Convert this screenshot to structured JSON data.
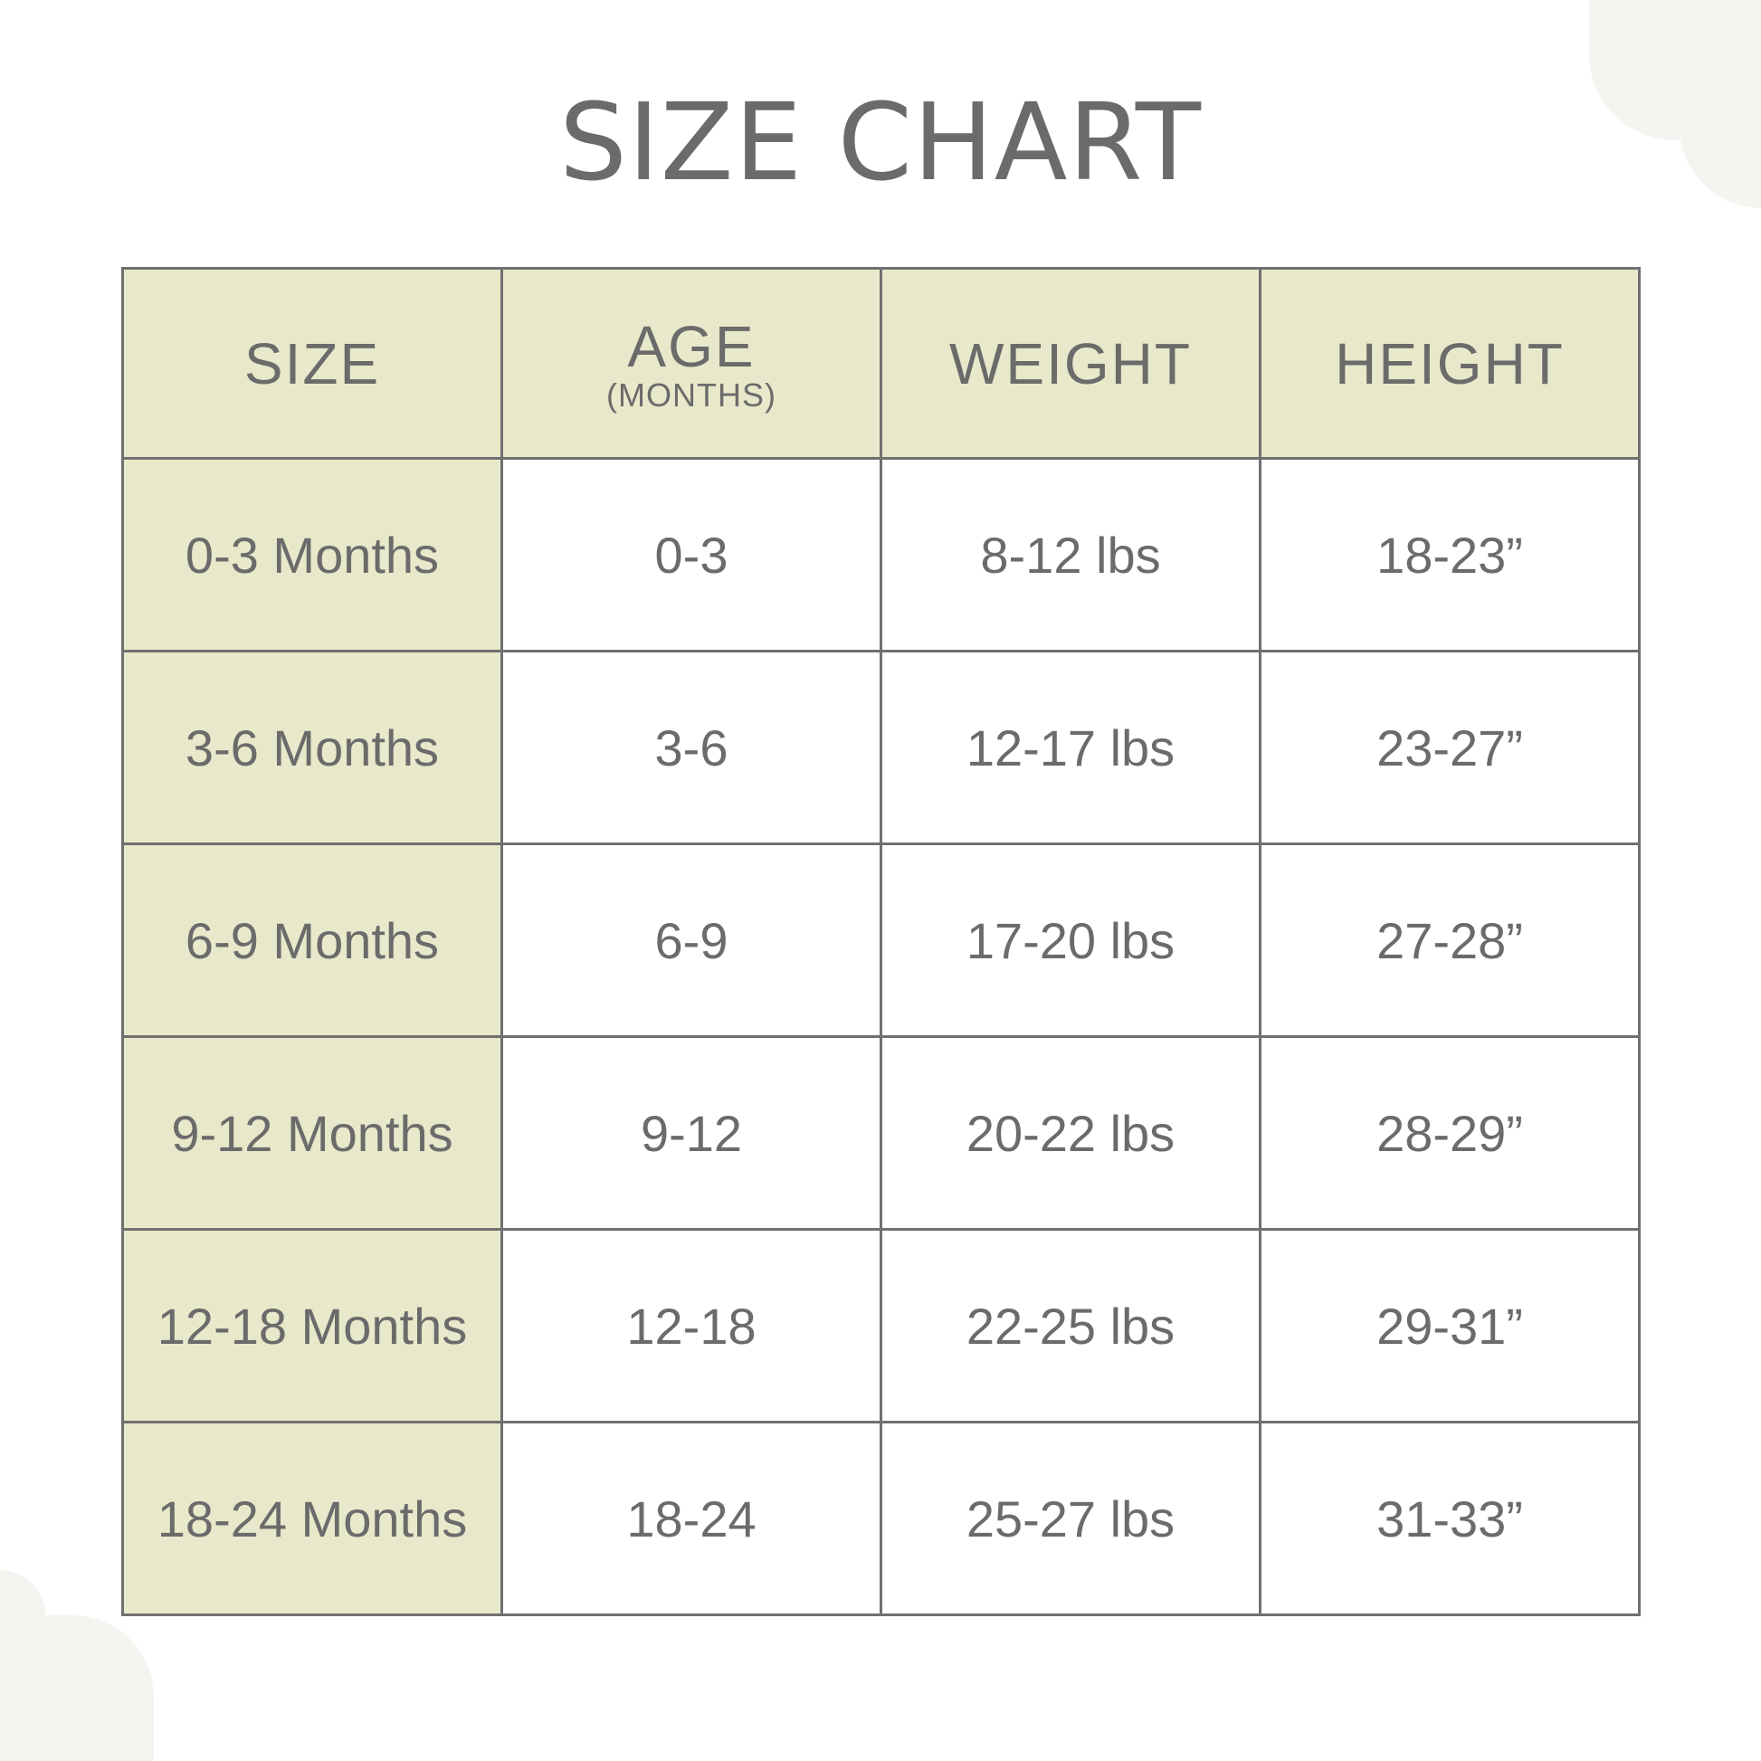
{
  "title": "SIZE CHART",
  "colors": {
    "header_fill": "#e8e8cb",
    "border": "#707070",
    "text": "#6b6b6b",
    "decor": "#f6f4f0"
  },
  "table": {
    "headers": [
      {
        "label": "SIZE",
        "sub": ""
      },
      {
        "label": "AGE",
        "sub": "(MONTHS)"
      },
      {
        "label": "WEIGHT",
        "sub": ""
      },
      {
        "label": "HEIGHT",
        "sub": ""
      }
    ],
    "rows": [
      [
        "0-3 Months",
        "0-3",
        "8-12 lbs",
        "18-23”"
      ],
      [
        "3-6 Months",
        "3-6",
        "12-17 lbs",
        "23-27”"
      ],
      [
        "6-9 Months",
        "6-9",
        "17-20 lbs",
        "27-28”"
      ],
      [
        "9-12 Months",
        "9-12",
        "20-22 lbs",
        "28-29”"
      ],
      [
        "12-18 Months",
        "12-18",
        "22-25 lbs",
        "29-31”"
      ],
      [
        "18-24 Months",
        "18-24",
        "25-27 lbs",
        "31-33”"
      ]
    ]
  }
}
